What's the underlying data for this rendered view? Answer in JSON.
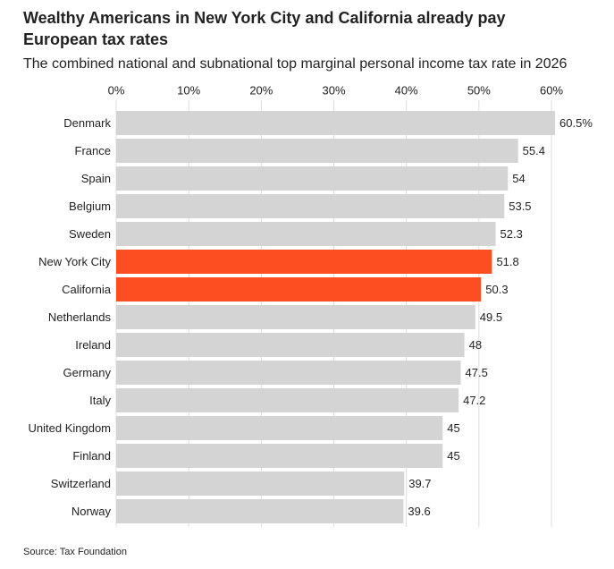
{
  "chart_data": {
    "type": "hbar",
    "title": "Wealthy Americans in New York City and California already pay European tax rates",
    "subtitle": "The combined national and subnational top marginal personal income tax rate in 2026",
    "source": "Source: Tax Foundation",
    "categories": [
      "Denmark",
      "France",
      "Spain",
      "Belgium",
      "Sweden",
      "New York City",
      "California",
      "Netherlands",
      "Ireland",
      "Germany",
      "Italy",
      "United Kingdom",
      "Finland",
      "Switzerland",
      "Norway"
    ],
    "values": [
      60.5,
      55.4,
      54,
      53.5,
      52.3,
      51.8,
      50.3,
      49.5,
      48,
      47.5,
      47.2,
      45,
      45,
      39.7,
      39.6
    ],
    "value_labels": [
      "60.5%",
      "55.4",
      "54",
      "53.5",
      "52.3",
      "51.8",
      "50.3",
      "49.5",
      "48",
      "47.5",
      "47.2",
      "45",
      "45",
      "39.7",
      "39.6"
    ],
    "colors": [
      "#d4d4d4",
      "#d4d4d4",
      "#d4d4d4",
      "#d4d4d4",
      "#d4d4d4",
      "#fc4e20",
      "#fc4e20",
      "#d4d4d4",
      "#d4d4d4",
      "#d4d4d4",
      "#d4d4d4",
      "#d4d4d4",
      "#d4d4d4",
      "#d4d4d4",
      "#d4d4d4"
    ],
    "xlim": [
      0,
      60
    ],
    "xticks": [
      {
        "value": 0,
        "label": "0%"
      },
      {
        "value": 10,
        "label": "10%"
      },
      {
        "value": 20,
        "label": "20%"
      },
      {
        "value": 30,
        "label": "30%"
      },
      {
        "value": 40,
        "label": "40%"
      },
      {
        "value": 50,
        "label": "50%"
      },
      {
        "value": 60,
        "label": "60%"
      }
    ],
    "grid": true
  }
}
